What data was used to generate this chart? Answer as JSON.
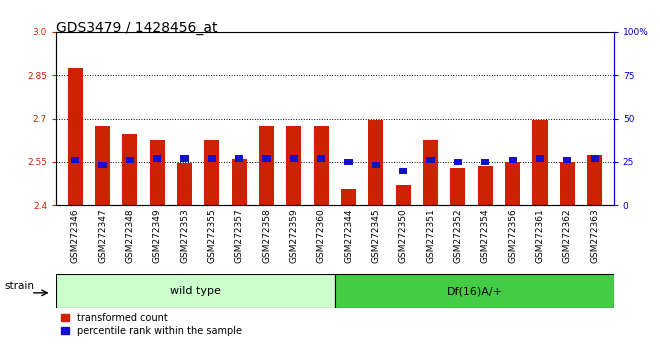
{
  "title": "GDS3479 / 1428456_at",
  "categories": [
    "GSM272346",
    "GSM272347",
    "GSM272348",
    "GSM272349",
    "GSM272353",
    "GSM272355",
    "GSM272357",
    "GSM272358",
    "GSM272359",
    "GSM272360",
    "GSM272344",
    "GSM272345",
    "GSM272350",
    "GSM272351",
    "GSM272352",
    "GSM272354",
    "GSM272356",
    "GSM272361",
    "GSM272362",
    "GSM272363"
  ],
  "red_values": [
    2.875,
    2.675,
    2.645,
    2.625,
    2.545,
    2.625,
    2.56,
    2.675,
    2.675,
    2.675,
    2.455,
    2.695,
    2.47,
    2.625,
    2.53,
    2.535,
    2.55,
    2.695,
    2.55,
    2.575
  ],
  "blue_values_pct": [
    26,
    23,
    26,
    27,
    27,
    27,
    27,
    27,
    27,
    27,
    25,
    23,
    20,
    26,
    25,
    25,
    26,
    27,
    26,
    27
  ],
  "ylim_left": [
    2.4,
    3.0
  ],
  "ylim_right": [
    0,
    100
  ],
  "yticks_left": [
    2.4,
    2.55,
    2.7,
    2.85,
    3.0
  ],
  "yticks_right": [
    0,
    25,
    50,
    75,
    100
  ],
  "hlines": [
    2.55,
    2.7,
    2.85
  ],
  "wild_type_count": 10,
  "group1_label": "wild type",
  "group2_label": "Df(16)A/+",
  "strain_label": "strain",
  "bar_color_red": "#cc2200",
  "bar_color_blue": "#1111cc",
  "group1_bg": "#ccffcc",
  "group2_bg": "#44cc44",
  "legend_red": "transformed count",
  "legend_blue": "percentile rank within the sample",
  "bar_width": 0.55,
  "title_fontsize": 10,
  "tick_fontsize": 6.5,
  "ylabel_left_color": "#cc2200",
  "ylabel_right_color": "#0000cc"
}
